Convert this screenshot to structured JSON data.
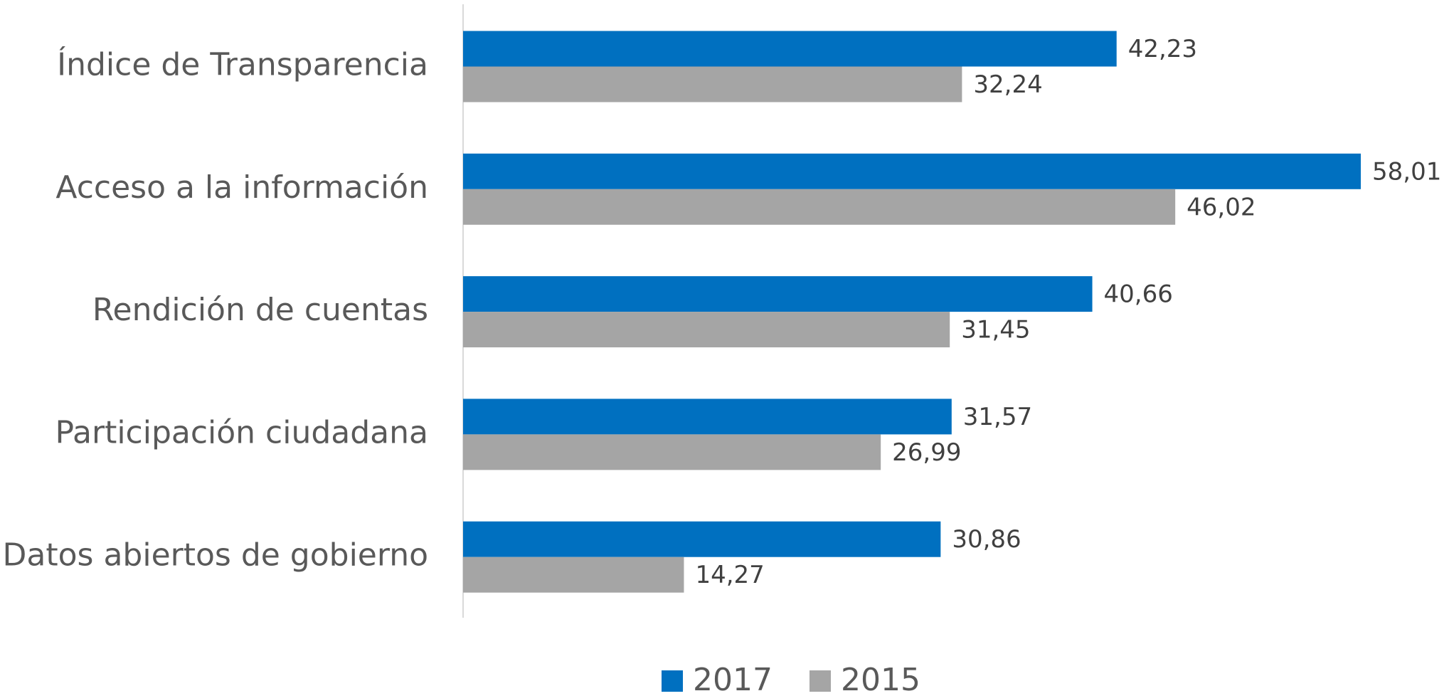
{
  "chart_data": {
    "type": "hbar",
    "categories": [
      "Índice de Transparencia",
      "Acceso a la información",
      "Rendición de cuentas",
      "Participación ciudadana",
      "Datos abiertos de gobierno"
    ],
    "series": [
      {
        "name": "2017",
        "color": "#0070c0",
        "values": [
          42.23,
          58.01,
          40.66,
          31.57,
          30.86
        ],
        "value_labels": [
          "42,23",
          "58,01",
          "40,66",
          "31,57",
          "30,86"
        ]
      },
      {
        "name": "2015",
        "color": "#a5a5a5",
        "values": [
          32.24,
          46.02,
          31.45,
          26.99,
          14.27
        ],
        "value_labels": [
          "32,24",
          "46,02",
          "31,45",
          "26,99",
          "14,27"
        ]
      }
    ],
    "legend": "bottom"
  }
}
